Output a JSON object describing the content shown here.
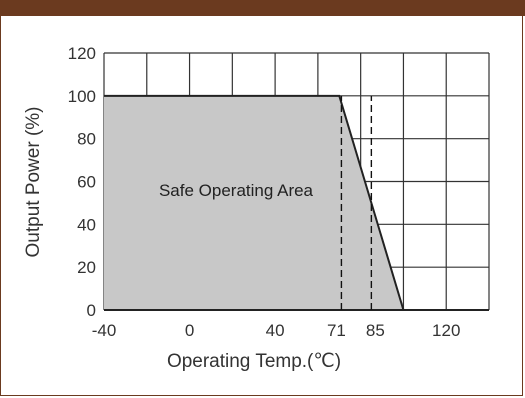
{
  "chart_data": {
    "type": "area",
    "xlabel": "Operating Temp.(℃)",
    "ylabel": "Output Power (%)",
    "x_ticks": [
      -40,
      0,
      40,
      71,
      85,
      120
    ],
    "x_tick_labels": [
      "-40",
      "0",
      "40",
      "71",
      "85",
      "120"
    ],
    "y_ticks": [
      0,
      20,
      40,
      60,
      80,
      100,
      120
    ],
    "y_tick_labels": [
      "0",
      "20",
      "40",
      "60",
      "80",
      "100",
      "120"
    ],
    "xlim": [
      -40,
      140
    ],
    "ylim": [
      0,
      120
    ],
    "grid": true,
    "series": [
      {
        "name": "",
        "x": [
          -40,
          70,
          100
        ],
        "y": [
          100,
          100,
          0
        ]
      }
    ],
    "annotations": [
      {
        "text": "Safe Operating Area"
      }
    ],
    "reference_lines": [
      {
        "x": 71,
        "style": "dashed"
      },
      {
        "x": 85,
        "style": "dashed"
      }
    ],
    "colors": {
      "fill": "#c8c8c8",
      "line": "#222222",
      "grid": "#333333",
      "border": "#6b3a1f"
    }
  }
}
